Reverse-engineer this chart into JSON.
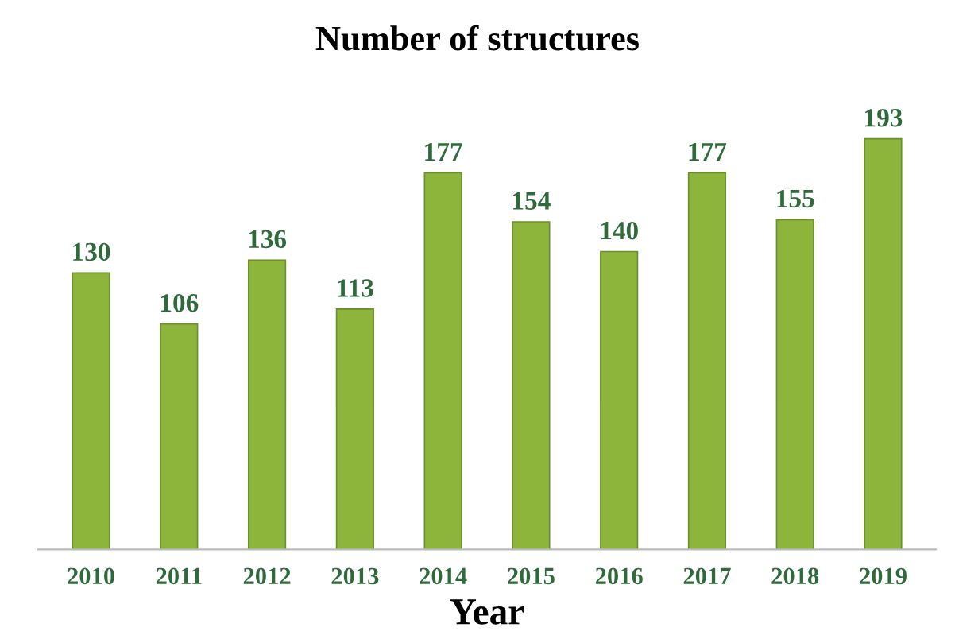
{
  "chart_data": {
    "type": "bar",
    "title": "Number of structures",
    "xlabel": "Year",
    "categories": [
      "2010",
      "2011",
      "2012",
      "2013",
      "2014",
      "2015",
      "2016",
      "2017",
      "2018",
      "2019"
    ],
    "values": [
      130,
      106,
      136,
      113,
      177,
      154,
      140,
      177,
      155,
      193
    ],
    "color": "#8db53c",
    "data_labels": true,
    "grid": false,
    "legend": false
  }
}
